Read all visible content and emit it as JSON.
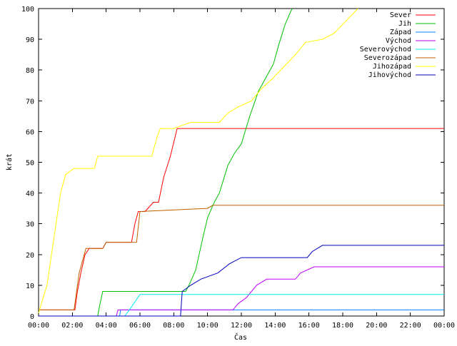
{
  "chart_data": {
    "type": "line",
    "title": "",
    "xlabel": "Čas",
    "ylabel": "krát",
    "xlim": [
      0,
      24
    ],
    "ylim": [
      0,
      100
    ],
    "x_ticks": [
      "00:00",
      "02:00",
      "04:00",
      "06:00",
      "08:00",
      "10:00",
      "12:00",
      "14:00",
      "16:00",
      "18:00",
      "20:00",
      "22:00",
      "00:00"
    ],
    "y_ticks": [
      0,
      10,
      20,
      30,
      40,
      50,
      60,
      70,
      80,
      90,
      100
    ],
    "grid": false,
    "legend_position": "top-right",
    "x_unit": "hours",
    "series": [
      {
        "name": "Sever",
        "color": "#ff0000",
        "points": [
          [
            0,
            2
          ],
          [
            2.15,
            2
          ],
          [
            2.3,
            8
          ],
          [
            2.5,
            14
          ],
          [
            2.75,
            20
          ],
          [
            3.0,
            22
          ],
          [
            3.8,
            22
          ],
          [
            4.0,
            24
          ],
          [
            5.5,
            24
          ],
          [
            5.7,
            30
          ],
          [
            5.9,
            34
          ],
          [
            6.3,
            34
          ],
          [
            6.8,
            37
          ],
          [
            7.1,
            37
          ],
          [
            7.4,
            45
          ],
          [
            7.8,
            52
          ],
          [
            8.2,
            61
          ],
          [
            24,
            61
          ]
        ]
      },
      {
        "name": "Jih",
        "color": "#00c000",
        "points": [
          [
            0,
            0
          ],
          [
            3.5,
            0
          ],
          [
            3.6,
            3
          ],
          [
            3.8,
            8
          ],
          [
            8.7,
            8
          ],
          [
            8.9,
            10
          ],
          [
            9.3,
            15
          ],
          [
            9.7,
            25
          ],
          [
            10.0,
            32
          ],
          [
            10.4,
            37
          ],
          [
            10.7,
            40
          ],
          [
            11.2,
            49
          ],
          [
            11.6,
            53
          ],
          [
            12.0,
            56
          ],
          [
            12.5,
            65
          ],
          [
            13.0,
            73
          ],
          [
            13.4,
            77
          ],
          [
            13.9,
            82
          ],
          [
            14.2,
            88
          ],
          [
            14.6,
            95
          ],
          [
            15.0,
            100
          ]
        ]
      },
      {
        "name": "Západ",
        "color": "#0080ff",
        "points": [
          [
            0,
            0
          ],
          [
            4.8,
            0
          ],
          [
            4.85,
            2
          ],
          [
            24,
            2
          ]
        ]
      },
      {
        "name": "Východ",
        "color": "#c000ff",
        "points": [
          [
            0,
            0
          ],
          [
            4.6,
            0
          ],
          [
            4.7,
            2
          ],
          [
            11.5,
            2
          ],
          [
            11.8,
            4
          ],
          [
            12.3,
            6
          ],
          [
            12.9,
            10
          ],
          [
            13.5,
            12
          ],
          [
            15.2,
            12
          ],
          [
            15.5,
            14
          ],
          [
            16.3,
            16
          ],
          [
            24,
            16
          ]
        ]
      },
      {
        "name": "Severovýchod",
        "color": "#00eeee",
        "points": [
          [
            0,
            0
          ],
          [
            5.1,
            0
          ],
          [
            5.5,
            3
          ],
          [
            6.0,
            7
          ],
          [
            24,
            7
          ]
        ]
      },
      {
        "name": "Severozápad",
        "color": "#c06000",
        "points": [
          [
            0,
            2
          ],
          [
            2.1,
            2
          ],
          [
            2.4,
            14
          ],
          [
            2.8,
            22
          ],
          [
            3.8,
            22
          ],
          [
            4.0,
            24
          ],
          [
            5.8,
            24
          ],
          [
            6.0,
            34
          ],
          [
            10.0,
            35
          ],
          [
            10.3,
            36
          ],
          [
            24,
            36
          ]
        ]
      },
      {
        "name": "Jihozápad",
        "color": "#ffff00",
        "points": [
          [
            0,
            1
          ],
          [
            0.5,
            10
          ],
          [
            0.9,
            25
          ],
          [
            1.3,
            40
          ],
          [
            1.6,
            46
          ],
          [
            2.1,
            48
          ],
          [
            3.3,
            48
          ],
          [
            3.5,
            52
          ],
          [
            6.7,
            52
          ],
          [
            7.0,
            58
          ],
          [
            7.2,
            61
          ],
          [
            8.0,
            61
          ],
          [
            8.5,
            62
          ],
          [
            9.0,
            63
          ],
          [
            10.7,
            63
          ],
          [
            11.2,
            66
          ],
          [
            11.8,
            68
          ],
          [
            12.6,
            70
          ],
          [
            13.2,
            74
          ],
          [
            13.8,
            77
          ],
          [
            14.5,
            81
          ],
          [
            15.2,
            85
          ],
          [
            15.8,
            89
          ],
          [
            16.8,
            90
          ],
          [
            17.5,
            92
          ],
          [
            18.2,
            96
          ],
          [
            18.9,
            100
          ]
        ]
      },
      {
        "name": "Jihovýchod",
        "color": "#0000c0",
        "points": [
          [
            0,
            0
          ],
          [
            8.4,
            0
          ],
          [
            8.5,
            8
          ],
          [
            9.0,
            10
          ],
          [
            9.6,
            12
          ],
          [
            10.6,
            14
          ],
          [
            11.3,
            17
          ],
          [
            12.0,
            19
          ],
          [
            15.9,
            19
          ],
          [
            16.2,
            21
          ],
          [
            16.8,
            23
          ],
          [
            24,
            23
          ]
        ]
      }
    ]
  }
}
